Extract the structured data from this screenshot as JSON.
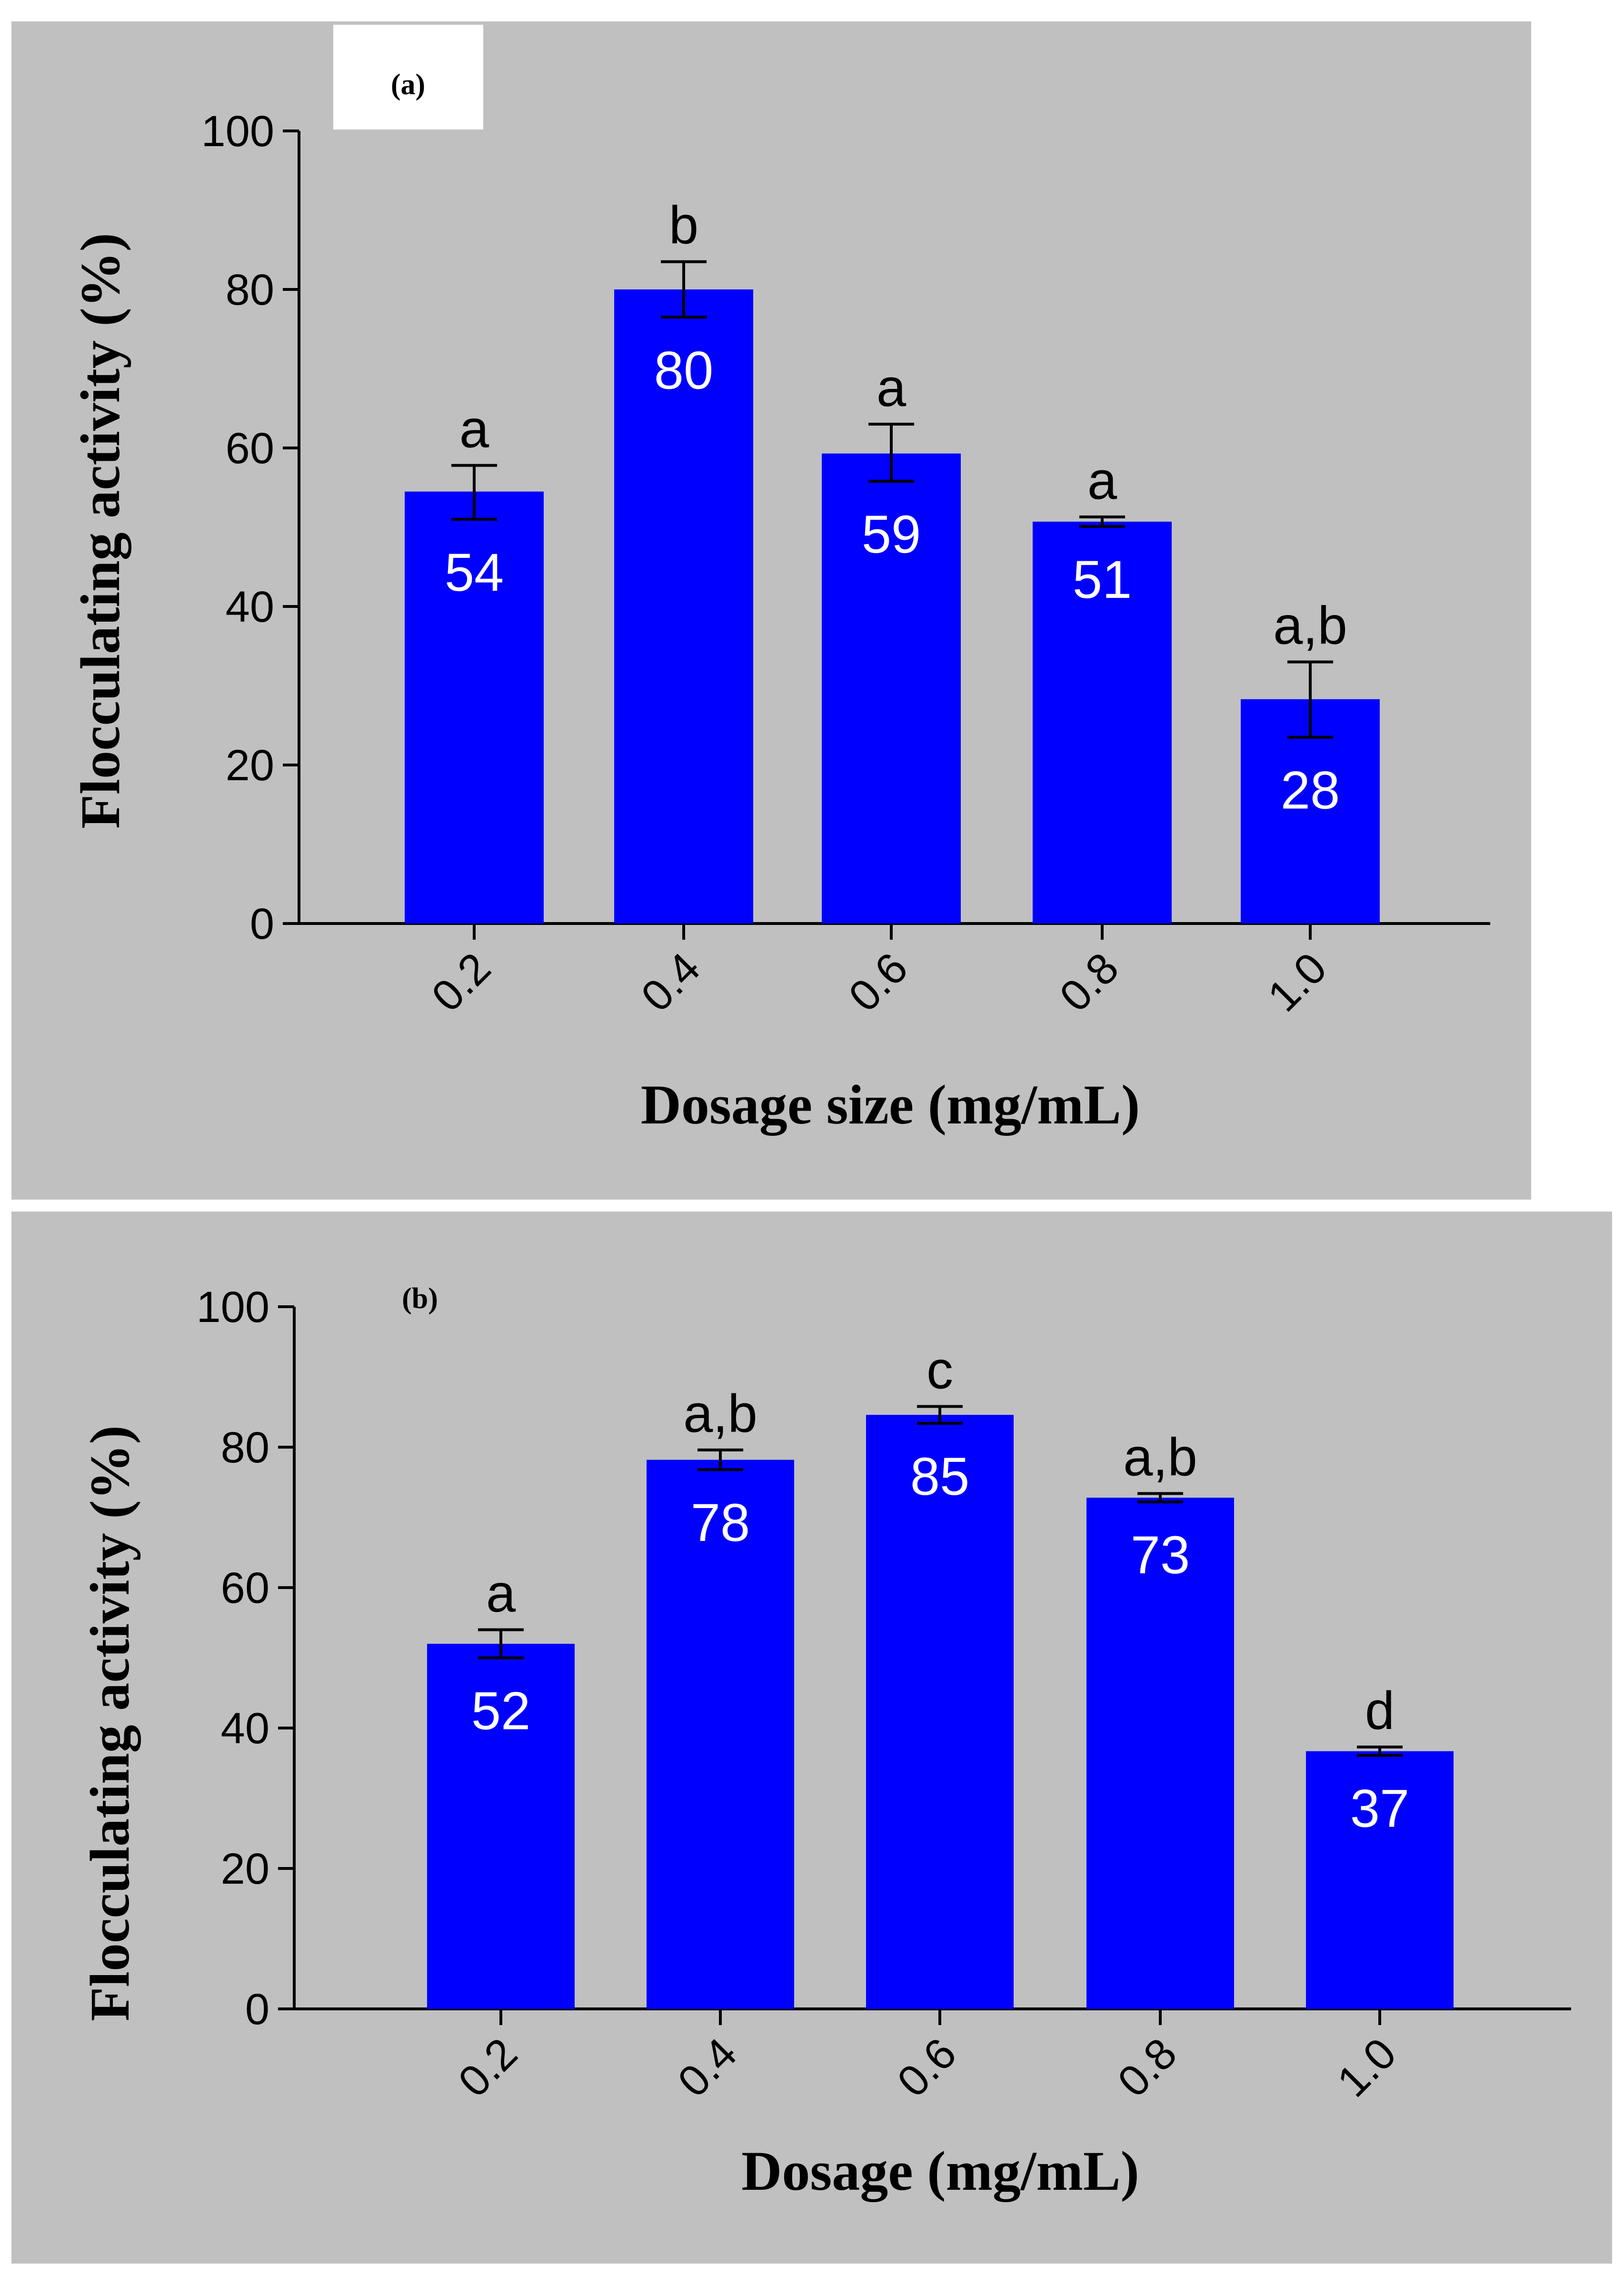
{
  "chart_data": [
    {
      "type": "bar",
      "panel_label": "(a)",
      "categories": [
        "0.2",
        "0.4",
        "0.6",
        "0.8",
        "1.0"
      ],
      "values": [
        54.5,
        80,
        59.3,
        50.7,
        28.3
      ],
      "value_labels": [
        "54",
        "80",
        "59",
        "51",
        "28"
      ],
      "error_upper": [
        57.8,
        83.5,
        63.0,
        51.3,
        33.0
      ],
      "error_lower": [
        51.0,
        76.5,
        55.8,
        50.1,
        23.5
      ],
      "significance_letters": [
        "a",
        "b",
        "a",
        "a",
        "a,b"
      ],
      "xlabel": "Dosage size (mg/mL)",
      "ylabel": "Flocculating activity (%)",
      "ylim": [
        0,
        100
      ],
      "yticks": [
        "0",
        "20",
        "40",
        "60",
        "80",
        "100"
      ],
      "bar_color": "#0000ff",
      "background_color": "#c0c0c0",
      "grid": false
    },
    {
      "type": "bar",
      "panel_label": "(b)",
      "categories": [
        "0.2",
        "0.4",
        "0.6",
        "0.8",
        "1.0"
      ],
      "values": [
        52,
        78.2,
        84.6,
        72.8,
        36.7
      ],
      "value_labels": [
        "52",
        "78",
        "85",
        "73",
        "37"
      ],
      "error_upper": [
        54.0,
        79.6,
        85.8,
        73.4,
        37.3
      ],
      "error_lower": [
        50.0,
        76.8,
        83.4,
        72.2,
        36.1
      ],
      "significance_letters": [
        "a",
        "a,b",
        "c",
        "a,b",
        "d"
      ],
      "xlabel": "Dosage (mg/mL)",
      "ylabel": "Flocculating activity (%)",
      "ylim": [
        0,
        100
      ],
      "yticks": [
        "0",
        "20",
        "40",
        "60",
        "80",
        "100"
      ],
      "bar_color": "#0000ff",
      "background_color": "#c0c0c0",
      "grid": false
    }
  ]
}
